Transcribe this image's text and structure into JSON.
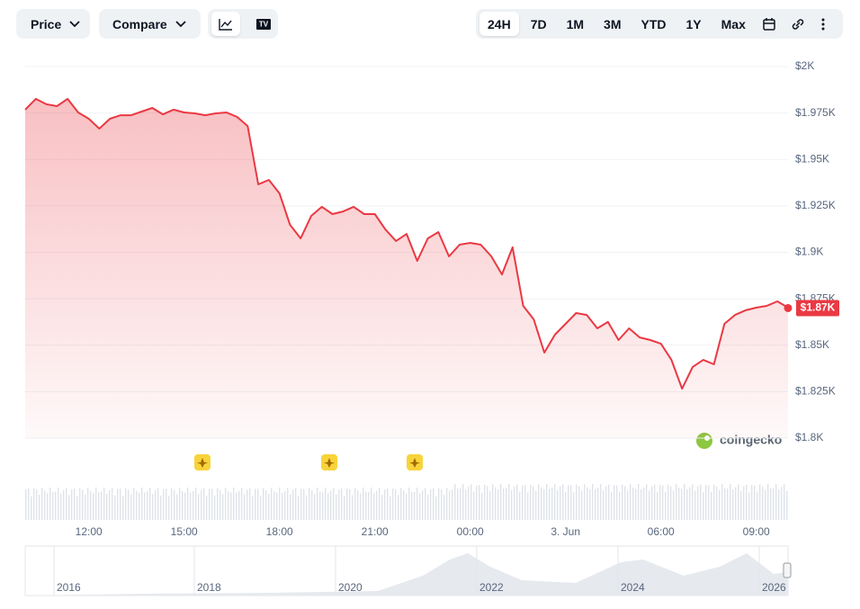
{
  "toolbar": {
    "price": "Price",
    "compare": "Compare",
    "ranges": [
      "24H",
      "7D",
      "1M",
      "3M",
      "YTD",
      "1Y",
      "Max"
    ]
  },
  "watermark": "coingecko",
  "navigator": {
    "years": [
      "2016",
      "2018",
      "2020",
      "2022",
      "2024",
      "2026"
    ]
  },
  "chart_data": {
    "type": "line",
    "categories": [
      null,
      null,
      null,
      null,
      null,
      null,
      "12:00",
      null,
      null,
      null,
      null,
      null,
      null,
      null,
      null,
      "15:00",
      null,
      null,
      null,
      null,
      null,
      null,
      null,
      null,
      "18:00",
      null,
      null,
      null,
      null,
      null,
      null,
      null,
      null,
      "21:00",
      null,
      null,
      null,
      null,
      null,
      null,
      null,
      null,
      "00:00",
      null,
      null,
      null,
      null,
      null,
      null,
      null,
      null,
      "3. Jun",
      null,
      null,
      null,
      null,
      null,
      null,
      null,
      null,
      "06:00",
      null,
      null,
      null,
      null,
      null,
      null,
      null,
      null,
      "09:00",
      null,
      null,
      null
    ],
    "values": [
      1976.8,
      1982.6,
      1979.7,
      1978.7,
      1982.6,
      1975.3,
      1971.9,
      1966.6,
      1971.9,
      1973.8,
      1973.8,
      1975.8,
      1977.7,
      1974.3,
      1976.8,
      1975.3,
      1974.8,
      1973.8,
      1974.8,
      1975.3,
      1972.9,
      1968.0,
      1936.6,
      1939.0,
      1931.7,
      1914.8,
      1907.5,
      1919.6,
      1924.5,
      1920.6,
      1922.0,
      1924.5,
      1920.6,
      1920.6,
      1912.3,
      1906.1,
      1909.9,
      1895.4,
      1907.5,
      1910.9,
      1897.8,
      1904.1,
      1905.1,
      1904.1,
      1897.8,
      1888.1,
      1902.7,
      1871.2,
      1863.9,
      1846.0,
      1855.7,
      1861.5,
      1867.3,
      1866.3,
      1859.1,
      1862.5,
      1852.8,
      1859.1,
      1854.2,
      1852.8,
      1850.8,
      1842.1,
      1826.6,
      1838.3,
      1842.1,
      1839.7,
      1861.5,
      1866.3,
      1868.8,
      1870.2,
      1871.2,
      1873.6,
      1870.2
    ],
    "color": "#ea3943",
    "ylim": [
      1800,
      2000
    ],
    "yticks": [
      {
        "value": 1800,
        "label": "$1.8K"
      },
      {
        "value": 1825,
        "label": "$1.825K"
      },
      {
        "value": 1850,
        "label": "$1.85K"
      },
      {
        "value": 1875,
        "label": "$1.875K"
      },
      {
        "value": 1900,
        "label": "$1.9K"
      },
      {
        "value": 1925,
        "label": "$1.925K"
      },
      {
        "value": 1950,
        "label": "$1.95K"
      },
      {
        "value": 1975,
        "label": "$1.975K"
      },
      {
        "value": 2000,
        "label": "$2K"
      }
    ],
    "grid": true,
    "current_price": {
      "value": 1870,
      "label": "$1.87K"
    }
  }
}
